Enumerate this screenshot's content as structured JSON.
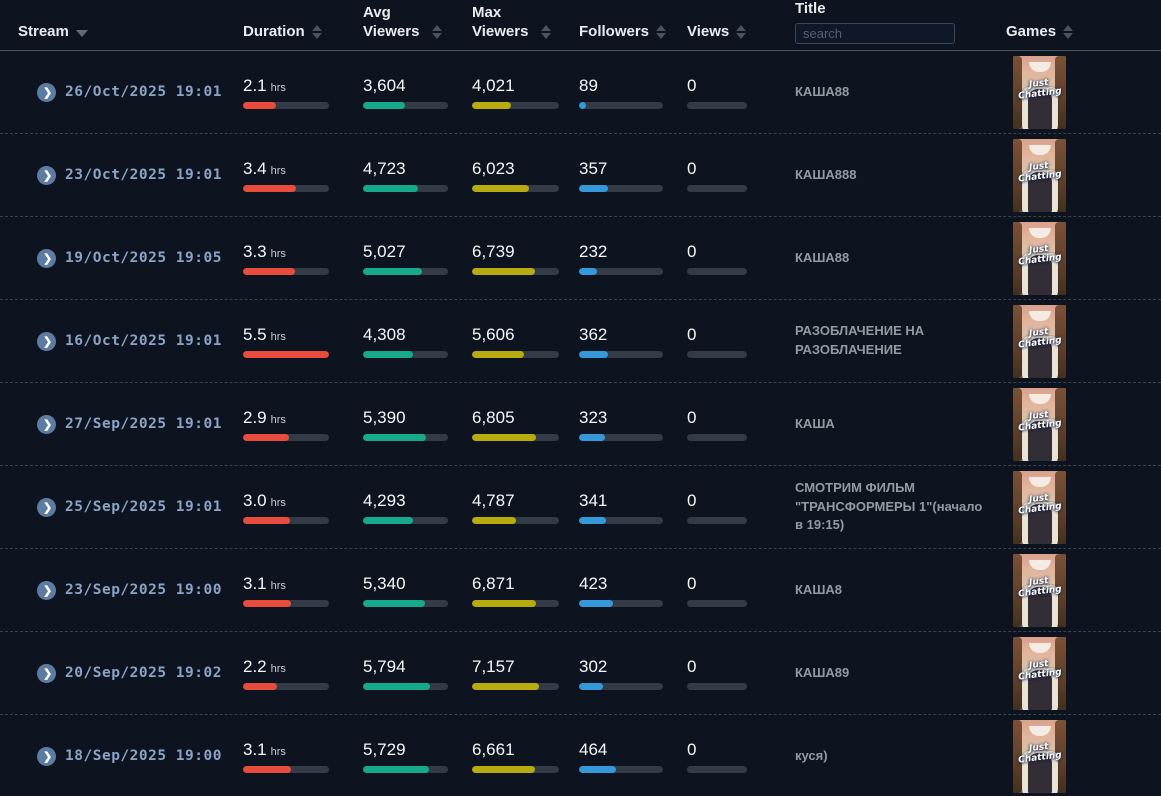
{
  "header": {
    "stream": "Stream",
    "duration": "Duration",
    "avg_viewers": "Avg Viewers",
    "max_viewers": "Max Viewers",
    "followers": "Followers",
    "views": "Views",
    "title": "Title",
    "games": "Games",
    "search_placeholder": "search"
  },
  "colors": {
    "background": "#0d1420",
    "duration_bar": "#e74c3c",
    "avg_viewers_bar": "#17a98c",
    "max_viewers_bar": "#b7ab10",
    "followers_bar": "#3498db",
    "bar_track": "#333b46",
    "date_text": "#8aa3c6",
    "title_text": "#949aa1"
  },
  "rows": [
    {
      "date": "26/Oct/2025 19:01",
      "duration": "2.1",
      "duration_unit": "hrs",
      "duration_pct": 38,
      "avg_viewers": "3,604",
      "avg_pct": 49,
      "max_viewers": "4,021",
      "max_pct": 45,
      "followers": "89",
      "followers_pct": 8,
      "views": "0",
      "views_pct": 0,
      "title": "КАША88",
      "game": "Just Chatting"
    },
    {
      "date": "23/Oct/2025 19:01",
      "duration": "3.4",
      "duration_unit": "hrs",
      "duration_pct": 62,
      "avg_viewers": "4,723",
      "avg_pct": 65,
      "max_viewers": "6,023",
      "max_pct": 65,
      "followers": "357",
      "followers_pct": 34,
      "views": "0",
      "views_pct": 0,
      "title": "КАША888",
      "game": "Just Chatting"
    },
    {
      "date": "19/Oct/2025 19:05",
      "duration": "3.3",
      "duration_unit": "hrs",
      "duration_pct": 60,
      "avg_viewers": "5,027",
      "avg_pct": 69,
      "max_viewers": "6,739",
      "max_pct": 72,
      "followers": "232",
      "followers_pct": 22,
      "views": "0",
      "views_pct": 0,
      "title": "КАША88",
      "game": "Just Chatting"
    },
    {
      "date": "16/Oct/2025 19:01",
      "duration": "5.5",
      "duration_unit": "hrs",
      "duration_pct": 100,
      "avg_viewers": "4,308",
      "avg_pct": 59,
      "max_viewers": "5,606",
      "max_pct": 60,
      "followers": "362",
      "followers_pct": 34,
      "views": "0",
      "views_pct": 0,
      "title": "РАЗОБЛАЧЕНИЕ НА РАЗОБЛАЧЕНИЕ",
      "game": "Just Chatting"
    },
    {
      "date": "27/Sep/2025 19:01",
      "duration": "2.9",
      "duration_unit": "hrs",
      "duration_pct": 53,
      "avg_viewers": "5,390",
      "avg_pct": 74,
      "max_viewers": "6,805",
      "max_pct": 73,
      "followers": "323",
      "followers_pct": 31,
      "views": "0",
      "views_pct": 0,
      "title": "КАША",
      "game": "Just Chatting"
    },
    {
      "date": "25/Sep/2025 19:01",
      "duration": "3.0",
      "duration_unit": "hrs",
      "duration_pct": 55,
      "avg_viewers": "4,293",
      "avg_pct": 59,
      "max_viewers": "4,787",
      "max_pct": 51,
      "followers": "341",
      "followers_pct": 32,
      "views": "0",
      "views_pct": 0,
      "title": "СМОТРИМ ФИЛЬМ \"ТРАНСФОРМЕРЫ 1\"(начало в 19:15)",
      "game": "Just Chatting"
    },
    {
      "date": "23/Sep/2025 19:00",
      "duration": "3.1",
      "duration_unit": "hrs",
      "duration_pct": 56,
      "avg_viewers": "5,340",
      "avg_pct": 73,
      "max_viewers": "6,871",
      "max_pct": 74,
      "followers": "423",
      "followers_pct": 40,
      "views": "0",
      "views_pct": 0,
      "title": "КАША8",
      "game": "Just Chatting"
    },
    {
      "date": "20/Sep/2025 19:02",
      "duration": "2.2",
      "duration_unit": "hrs",
      "duration_pct": 40,
      "avg_viewers": "5,794",
      "avg_pct": 79,
      "max_viewers": "7,157",
      "max_pct": 77,
      "followers": "302",
      "followers_pct": 29,
      "views": "0",
      "views_pct": 0,
      "title": "КАША89",
      "game": "Just Chatting"
    },
    {
      "date": "18/Sep/2025 19:00",
      "duration": "3.1",
      "duration_unit": "hrs",
      "duration_pct": 56,
      "avg_viewers": "5,729",
      "avg_pct": 78,
      "max_viewers": "6,661",
      "max_pct": 72,
      "followers": "464",
      "followers_pct": 44,
      "views": "0",
      "views_pct": 0,
      "title": "куся)",
      "game": "Just Chatting"
    }
  ]
}
